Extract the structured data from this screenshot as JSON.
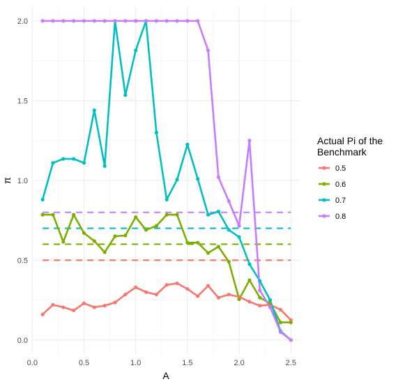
{
  "chart_data": {
    "type": "line",
    "title": "",
    "xlabel": "A",
    "ylabel": "π",
    "xlim": [
      0.0,
      2.5
    ],
    "ylim": [
      0.0,
      2.0
    ],
    "x_ticks": [
      "0.0",
      "0.5",
      "1.0",
      "1.5",
      "2.0",
      "2.5"
    ],
    "y_ticks": [
      "0.0",
      "0.5",
      "1.0",
      "1.5",
      "2.0"
    ],
    "grid": true,
    "legend_title_lines": [
      "Actual Pi of the",
      "Benchmark"
    ],
    "legend_position": "right",
    "x": [
      0.1,
      0.2,
      0.3,
      0.4,
      0.5,
      0.6,
      0.7,
      0.8,
      0.9,
      1.0,
      1.1,
      1.2,
      1.3,
      1.4,
      1.5,
      1.6,
      1.7,
      1.8,
      1.9,
      2.0,
      2.1,
      2.2,
      2.3,
      2.4,
      2.5
    ],
    "series": [
      {
        "name": "0.5",
        "color": "#F8766D",
        "benchmark": 0.5,
        "values": [
          0.16,
          0.22,
          0.205,
          0.185,
          0.23,
          0.205,
          0.215,
          0.235,
          0.285,
          0.33,
          0.3,
          0.285,
          0.345,
          0.355,
          0.32,
          0.275,
          0.34,
          0.265,
          0.285,
          0.27,
          0.24,
          0.215,
          0.22,
          0.19,
          0.125
        ]
      },
      {
        "name": "0.6",
        "color": "#7CAE00",
        "benchmark": 0.6,
        "values": [
          0.785,
          0.785,
          0.615,
          0.785,
          0.67,
          0.62,
          0.55,
          0.65,
          0.655,
          0.77,
          0.69,
          0.715,
          0.785,
          0.785,
          0.61,
          0.61,
          0.545,
          0.585,
          0.49,
          0.255,
          0.375,
          0.265,
          0.23,
          0.11,
          0.11
        ]
      },
      {
        "name": "0.7",
        "color": "#00BFC4",
        "benchmark": 0.7,
        "values": [
          0.88,
          1.11,
          1.135,
          1.135,
          1.11,
          1.44,
          1.09,
          2.0,
          1.535,
          1.815,
          2.0,
          1.3,
          0.88,
          1.005,
          1.225,
          1.01,
          0.785,
          0.805,
          0.69,
          0.645,
          0.475,
          0.37,
          0.25,
          0.055,
          0.0
        ]
      },
      {
        "name": "0.8",
        "color": "#C77CFF",
        "benchmark": 0.8,
        "values": [
          2.0,
          2.0,
          2.0,
          2.0,
          2.0,
          2.0,
          2.0,
          2.0,
          2.0,
          2.0,
          2.0,
          2.0,
          2.0,
          2.0,
          2.0,
          2.0,
          1.815,
          1.02,
          0.87,
          0.715,
          1.25,
          0.31,
          0.205,
          0.05,
          0.0
        ]
      }
    ]
  }
}
